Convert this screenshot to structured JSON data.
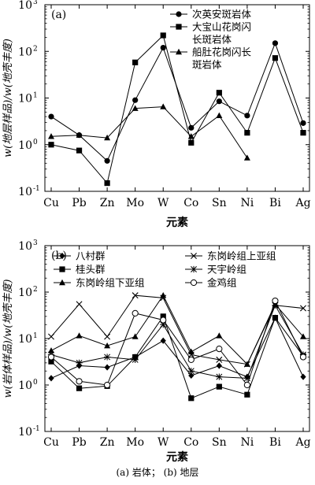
{
  "caption": "(a) 岩体； (b) 地层",
  "chart_data": [
    {
      "type": "line",
      "panel_label": "(a)",
      "xlabel": "元素",
      "ylabel": "w(地层样品)/w(地壳丰度)",
      "yscale": "log",
      "ylim": [
        0.1,
        1000
      ],
      "yticks": [
        {
          "value": 0.1,
          "base": "10",
          "exp": "-1"
        },
        {
          "value": 1,
          "base": "10",
          "exp": "0"
        },
        {
          "value": 10,
          "base": "10",
          "exp": "1"
        },
        {
          "value": 100,
          "base": "10",
          "exp": "2"
        },
        {
          "value": 1000,
          "base": "10",
          "exp": "3"
        }
      ],
      "categories": [
        "Cu",
        "Pb",
        "Zn",
        "Mo",
        "W",
        "Co",
        "Sn",
        "Ni",
        "Bi",
        "Ag"
      ],
      "legend_position": "top-right",
      "series": [
        {
          "name_lines": [
            "次英安斑岩体"
          ],
          "marker": "circle-filled",
          "values": [
            4.0,
            1.6,
            0.45,
            9.0,
            120,
            2.3,
            8.5,
            4.2,
            150,
            2.9
          ]
        },
        {
          "name_lines": [
            "大宝山花岗闪",
            "长斑岩体"
          ],
          "marker": "square-filled",
          "values": [
            1.0,
            0.75,
            0.15,
            58,
            220,
            1.1,
            13,
            1.8,
            72,
            1.8
          ]
        },
        {
          "name_lines": [
            "船肚花岗闪长",
            "斑岩体"
          ],
          "marker": "triangle-filled",
          "values": [
            1.5,
            1.6,
            1.4,
            6.0,
            6.5,
            1.5,
            4.2,
            0.52,
            null,
            null
          ]
        }
      ]
    },
    {
      "type": "line",
      "panel_label": "(b)",
      "xlabel": "元素",
      "ylabel": "w(岩体样品)/w(地壳丰度)",
      "yscale": "log",
      "ylim": [
        0.1,
        1000
      ],
      "yticks": [
        {
          "value": 0.1,
          "base": "10",
          "exp": "-1"
        },
        {
          "value": 1,
          "base": "10",
          "exp": "0"
        },
        {
          "value": 10,
          "base": "10",
          "exp": "1"
        },
        {
          "value": 100,
          "base": "10",
          "exp": "2"
        },
        {
          "value": 1000,
          "base": "10",
          "exp": "3"
        }
      ],
      "categories": [
        "Cu",
        "Pb",
        "Zn",
        "Mo",
        "W",
        "Co",
        "Sn",
        "Ni",
        "Bi",
        "Ag"
      ],
      "legend_position": "top",
      "series": [
        {
          "name_lines": [
            "八村群"
          ],
          "marker": "diamond-filled",
          "values": [
            1.4,
            2.6,
            2.4,
            4.0,
            9.0,
            1.6,
            2.6,
            1.5,
            28,
            1.5
          ]
        },
        {
          "name_lines": [
            "桂头群"
          ],
          "marker": "square-filled",
          "values": [
            3.2,
            0.85,
            0.95,
            4.0,
            30,
            0.52,
            0.92,
            0.62,
            28,
            4.2
          ]
        },
        {
          "name_lines": [
            "东岗岭组下亚组"
          ],
          "marker": "triangle-filled",
          "values": [
            5.5,
            11.5,
            7.0,
            11.0,
            85,
            5.2,
            11.5,
            2.8,
            55,
            11.0
          ]
        },
        {
          "name_lines": [
            "东岗岭组上亚组"
          ],
          "marker": "x",
          "values": [
            11.0,
            55,
            11.0,
            85,
            75,
            4.5,
            3.5,
            2.8,
            52,
            45
          ]
        },
        {
          "name_lines": [
            "天宇岭组"
          ],
          "marker": "star",
          "values": [
            4.5,
            3.0,
            4.0,
            3.5,
            20,
            2.0,
            1.5,
            1.4,
            52,
            4.5
          ]
        },
        {
          "name_lines": [
            "金鸡组"
          ],
          "marker": "circle-open",
          "values": [
            4.0,
            1.2,
            1.0,
            35,
            25,
            3.5,
            6.0,
            1.0,
            65,
            4.0
          ]
        }
      ]
    }
  ]
}
